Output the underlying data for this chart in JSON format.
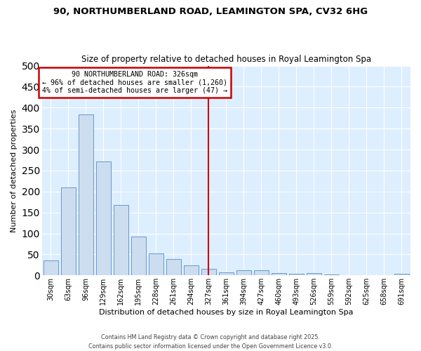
{
  "title1": "90, NORTHUMBERLAND ROAD, LEAMINGTON SPA, CV32 6HG",
  "title2": "Size of property relative to detached houses in Royal Leamington Spa",
  "xlabel": "Distribution of detached houses by size in Royal Leamington Spa",
  "ylabel": "Number of detached properties",
  "categories": [
    "30sqm",
    "63sqm",
    "96sqm",
    "129sqm",
    "162sqm",
    "195sqm",
    "228sqm",
    "261sqm",
    "294sqm",
    "327sqm",
    "361sqm",
    "394sqm",
    "427sqm",
    "460sqm",
    "493sqm",
    "526sqm",
    "559sqm",
    "592sqm",
    "625sqm",
    "658sqm",
    "691sqm"
  ],
  "values": [
    35,
    210,
    383,
    272,
    168,
    92,
    52,
    39,
    24,
    15,
    8,
    12,
    12,
    5,
    3,
    5,
    2,
    1,
    1,
    1,
    4
  ],
  "bar_color": "#ccddf0",
  "bar_edge_color": "#6699cc",
  "highlight_index": 9,
  "annotation_text": "90 NORTHUMBERLAND ROAD: 326sqm\n← 96% of detached houses are smaller (1,260)\n4% of semi-detached houses are larger (47) →",
  "annotation_box_color": "#ffffff",
  "annotation_box_edge": "#cc0000",
  "red_line_color": "#cc0000",
  "plot_bg_color": "#ddeeff",
  "fig_bg_color": "#ffffff",
  "grid_color": "#ffffff",
  "ylim": [
    0,
    500
  ],
  "yticks": [
    0,
    50,
    100,
    150,
    200,
    250,
    300,
    350,
    400,
    450,
    500
  ],
  "footer": "Contains HM Land Registry data © Crown copyright and database right 2025.\nContains public sector information licensed under the Open Government Licence v3.0."
}
